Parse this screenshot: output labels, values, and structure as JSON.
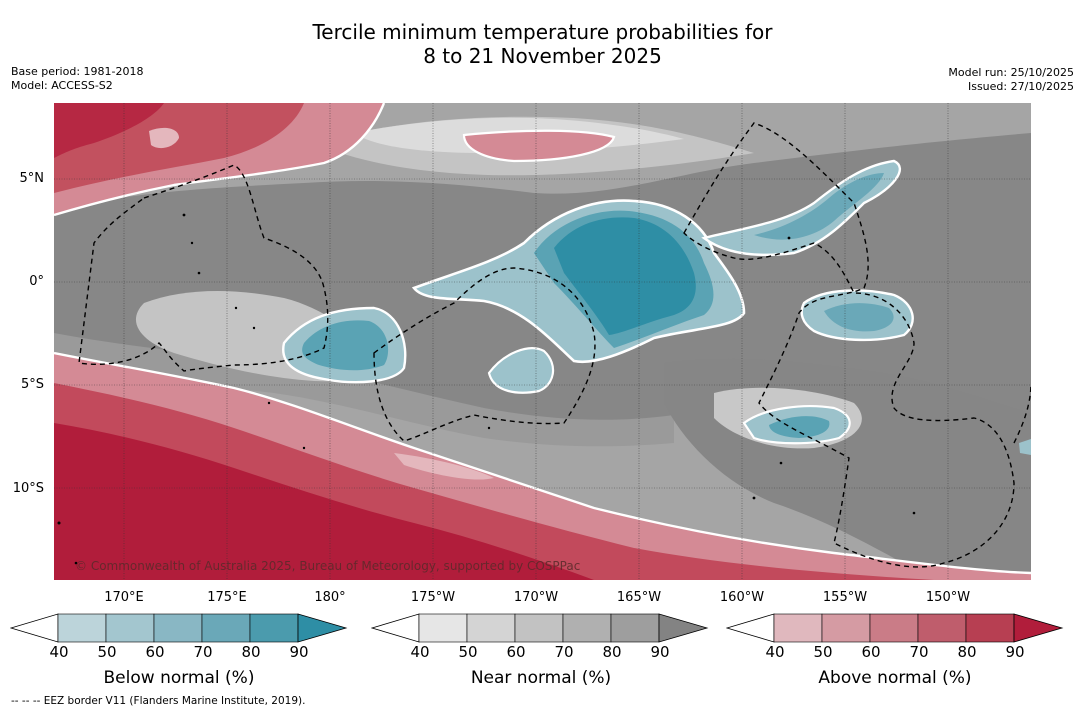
{
  "title_line1": "Tercile minimum temperature probabilities for",
  "title_line2": "8 to 21 November 2025",
  "base_period": "Base period: 1981-2018",
  "model": "Model: ACCESS-S2",
  "model_run": "Model run: 25/10/2025",
  "issued": "Issued: 27/10/2025",
  "lat_labels": [
    "5°N",
    "0°",
    "5°S",
    "10°S"
  ],
  "lon_labels": [
    "170°E",
    "175°E",
    "180°",
    "175°W",
    "170°W",
    "165°W",
    "160°W",
    "155°W",
    "150°W"
  ],
  "copyright": "© Commonwealth of Australia 2025, Bureau of Meteorology, supported by COSPPac",
  "eez_note": "--  --  -- EEZ border V11 (Flanders Marine Institute, 2019).",
  "colorbars": [
    {
      "title": "Below normal (%)",
      "ticks": [
        "40",
        "50",
        "60",
        "70",
        "80",
        "90"
      ],
      "colors": [
        "#ffffff",
        "#bcd4da",
        "#a3c6cf",
        "#89b7c4",
        "#6aa8b8",
        "#4b9bad",
        "#2e8ea5"
      ]
    },
    {
      "title": "Near normal (%)",
      "ticks": [
        "40",
        "50",
        "60",
        "70",
        "80",
        "90"
      ],
      "colors": [
        "#ffffff",
        "#e6e6e6",
        "#d4d4d4",
        "#c2c2c2",
        "#b0b0b0",
        "#9e9e9e",
        "#838383"
      ]
    },
    {
      "title": "Above normal (%)",
      "ticks": [
        "40",
        "50",
        "60",
        "70",
        "80",
        "90"
      ],
      "colors": [
        "#ffffff",
        "#e0b8be",
        "#d59ba3",
        "#ca7c87",
        "#bf5d6c",
        "#b73f52",
        "#b11d3b"
      ]
    }
  ],
  "palette": {
    "near_dark": "#878787",
    "near_mid": "#a3a3a3",
    "near_light": "#c4c4c4",
    "near_pale": "#dcdcdc",
    "below_dark": "#2e8ea5",
    "below_mid": "#5aa3b4",
    "below_light": "#9cc2cb",
    "above_dark": "#b11d3b",
    "above_mid": "#c24a5c",
    "above_light": "#d58b96",
    "above_pale": "#e4b7bd"
  }
}
